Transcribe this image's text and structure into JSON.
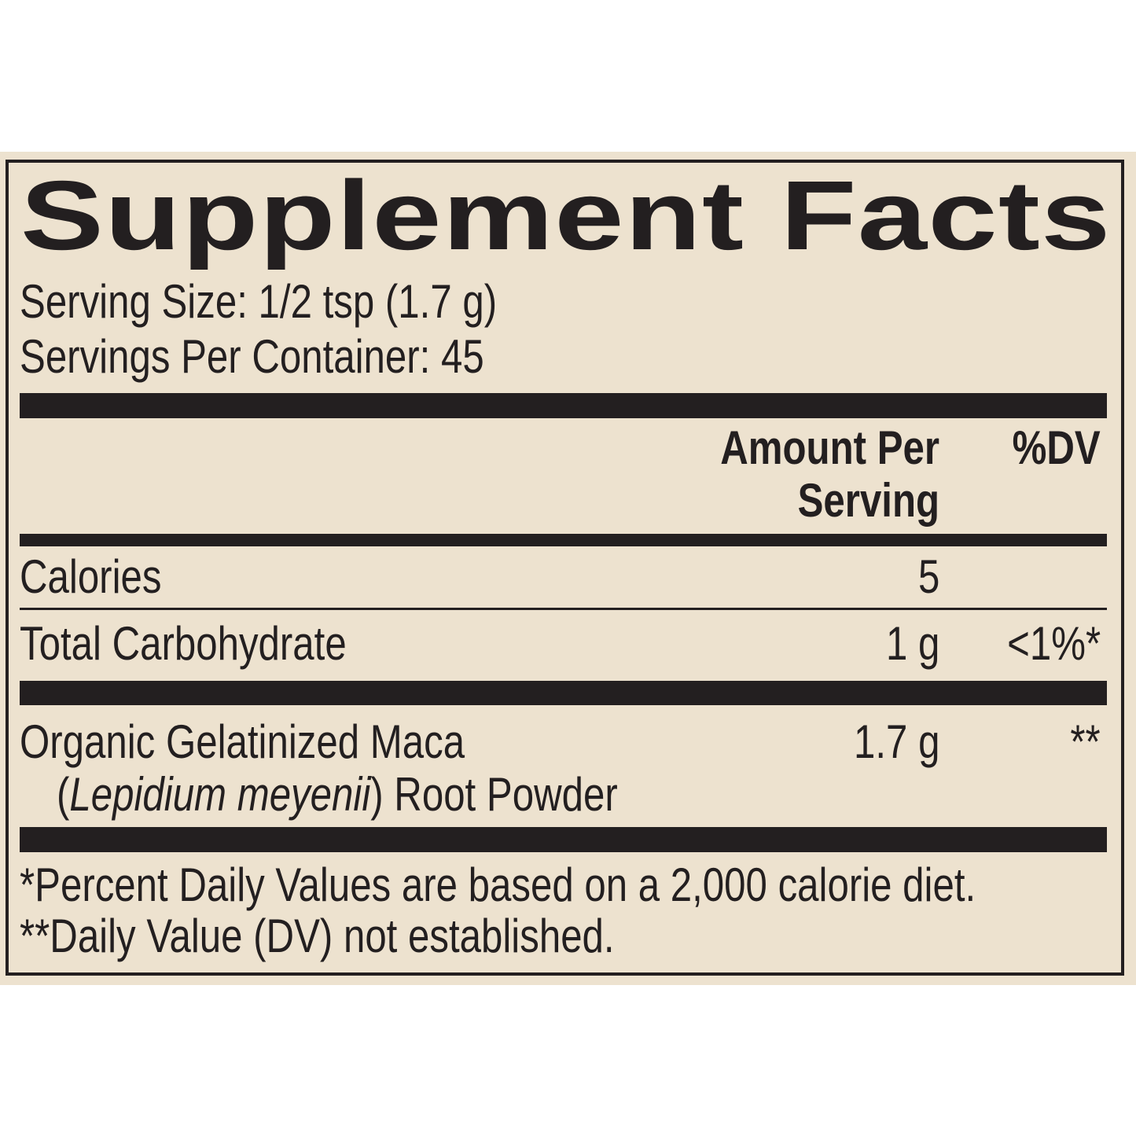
{
  "title": "Supplement Facts",
  "serving_size": "Serving Size: 1/2 tsp (1.7 g)",
  "servings_per_container": "Servings Per Container: 45",
  "header": {
    "amount_line1": "Amount Per",
    "amount_line2": "Serving",
    "dv": "%DV"
  },
  "rows": [
    {
      "name": "Calories",
      "amount": "5",
      "dv": ""
    },
    {
      "name": "Total Carbohydrate",
      "amount": "1 g",
      "dv": "<1%*"
    },
    {
      "name": "Organic Gelatinized Maca",
      "name_open": "(",
      "latin": "Lepidium meyenii",
      "name_rest": ") Root Powder",
      "amount": "1.7 g",
      "dv": "**"
    }
  ],
  "footnotes": [
    "*Percent Daily Values are based on a 2,000 calorie diet.",
    "**Daily Value (DV) not established."
  ],
  "colors": {
    "background": "#ede2cf",
    "ink": "#231f20"
  }
}
